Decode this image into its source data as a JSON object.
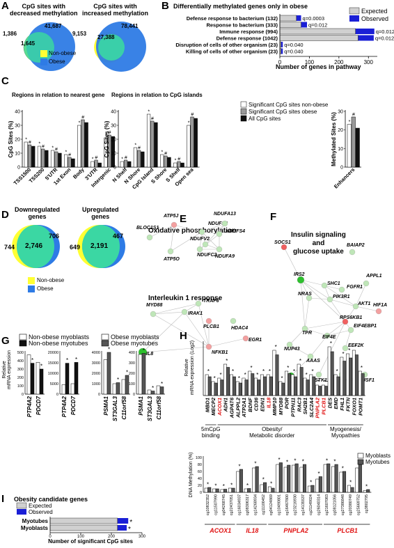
{
  "panels": {
    "A": {
      "letter": "A",
      "dec_title": "CpG sites with\ndecreased methylation",
      "inc_title": "CpG sites with\nincreased methylation",
      "dec_values": [
        "1,386",
        "1,645",
        "41,687"
      ],
      "inc_values": [
        "9,153",
        "27,388",
        "78,441"
      ],
      "legend": [
        "Non-obese",
        "Obese"
      ]
    },
    "B": {
      "letter": "B",
      "title": "Differentially methylated genes only in obese",
      "legend": [
        "Expected",
        "Observed"
      ],
      "xlabel": "Number of genes in pathway",
      "ticks": [
        "0",
        "100",
        "200",
        "300"
      ]
    },
    "C": {
      "letter": "C",
      "title1": "Regions in relation to nearest gene",
      "title2": "Regions in relation to CpG islands",
      "ylabel": "CpG Sites (%)",
      "ylabel2": "Methylated Sites (%)",
      "legend": [
        "Significant CpG sites non-obese",
        "Significant CpG sites obese",
        "All CpG sites"
      ]
    },
    "D": {
      "letter": "D",
      "down_title": "Downregulated\ngenes",
      "up_title": "Upregulated\ngenes",
      "down_values": [
        "744",
        "2,746",
        "706"
      ],
      "up_values": [
        "649",
        "2,191",
        "467"
      ],
      "legend": [
        "Non-obese",
        "Obese"
      ]
    },
    "E": {
      "letter": "E",
      "title1": "Oxidative phosphorylation",
      "title2": "Interleukin 1 response",
      "nodes1": [
        "ATP5J",
        "NDUFS8",
        "NDUFA13",
        "BLOC1S1",
        "NDUFS4",
        "NDUFV2",
        "NDUFC2",
        "NDUFA9",
        "ATP5O"
      ],
      "nodes2": [
        "MYD88",
        "TRAF6",
        "IRAK1",
        "PLCB1",
        "HDAC4",
        "IL8",
        "NFKB1",
        "EGR1"
      ]
    },
    "F": {
      "letter": "F",
      "title": "Insulin signaling\nand\nglucose uptake",
      "nodes": [
        "SOCS1",
        "BAIAP2",
        "IRS2",
        "SHC1",
        "FGFR1",
        "APPL1",
        "PIK3R1",
        "NRAS",
        "AKT1",
        "HIF1A",
        "RPS6KB1",
        "EIF4EBP1",
        "TPR",
        "EIF4E",
        "NUP43",
        "EEF2K",
        "AAAS",
        "IGF2",
        "STK11",
        "PPM1A",
        "USF1"
      ]
    },
    "G": {
      "letter": "G",
      "legend": [
        "Non-obese myoblasts",
        "Non-obese myotubes",
        "Obese myoblasts",
        "Obese myotubes"
      ],
      "ylabel": "Relative\nmRNA expression",
      "groups": [
        {
          "genes": [
            "PTP4A2",
            "PDCD7"
          ],
          "ticks": [
            "0",
            "100",
            "200",
            "300",
            "400",
            "500"
          ]
        },
        {
          "genes": [
            "PTP4A2",
            "PDCD7"
          ],
          "ticks": [
            "0",
            "5000",
            "10000",
            "15000",
            "20000"
          ]
        },
        {
          "genes": [
            "PSMA1",
            "ST3GAL3",
            "C11orf58"
          ],
          "ticks": [
            "0",
            "1000",
            "2000",
            "3000",
            "4000"
          ]
        },
        {
          "genes": [
            "PSMA1",
            "ST3GAL3",
            "C11orf58"
          ],
          "ticks": [
            "0",
            "100",
            "200",
            "300",
            "400"
          ]
        }
      ]
    },
    "H": {
      "letter": "H",
      "ylabel": "Relative\nmRNA expression (Log2)",
      "genes": [
        "MBD1",
        "MECP2",
        "ACOX1",
        "ADH1",
        "AGPAT6",
        "ALPPL2",
        "ATP2A1",
        "BDNF",
        "CD36",
        "EDN1",
        "IL18",
        "MMP10",
        "MYD88",
        "POR",
        "PTPN11",
        "RAC3",
        "SH2B1",
        "SLC2A4",
        "PNPLA2",
        "PLCB1",
        "DES",
        "EMD",
        "FHL1",
        "FKTN",
        "FOXO1",
        "POMT1"
      ],
      "red_genes": [
        "ACOX1",
        "IL18",
        "PNPLA2",
        "PLCB1"
      ],
      "categories": [
        "5mCpG\nbinding",
        "Obesity/\nMetabolic disorder",
        "Myogenesis/\nMyopathies"
      ],
      "meth_ylabel": "DNA Methylation (%)",
      "legend": [
        "Myoblasts",
        "Myotubes"
      ],
      "meth_genes": [
        "ACOX1",
        "IL18",
        "PNPLA2",
        "PLCB1"
      ],
      "probes": [
        "cg10832352",
        "cg11507990",
        "cg04268745",
        "cg22437051",
        "cg16034937",
        "cg08306317",
        "cg14268934",
        "cg11100452",
        "cg04124869",
        "cg10490801",
        "cg16467800",
        "cg23216930",
        "cg14135537",
        "cg21149024",
        "cg26040314",
        "cg21607083",
        "cg08121056",
        "cg27386848",
        "cg20380749",
        "cg25669752",
        "cg3802795"
      ]
    },
    "I": {
      "letter": "I",
      "title": "Obesity candidate genes",
      "legend": [
        "Expected",
        "Observed"
      ],
      "rows": [
        "Myotubes",
        "Myoblasts"
      ],
      "xlabel": "Number of significant CpG sites",
      "ticks": [
        "0",
        "100",
        "200",
        "300"
      ]
    }
  },
  "chart_data": [
    {
      "type": "bar",
      "title": "Differentially methylated genes only in obese",
      "categories": [
        "Defense response to bacterium (132)",
        "Response to bacterium (333)",
        "Immune response (994)",
        "Defense response (1042)",
        "Disruption of cells of other organism (23)",
        "Killing of cells of other organism (23)"
      ],
      "series": [
        {
          "name": "Expected",
          "values": [
            56,
            72,
            256,
            265,
            4,
            4
          ]
        },
        {
          "name": "Observed",
          "values": [
            72,
            92,
            320,
            318,
            10,
            10
          ]
        }
      ],
      "annotations": [
        "q=0.0003",
        "q=0.012",
        "q=0.012",
        "q=0.012",
        "q=0.040",
        "q=0.040"
      ],
      "xlabel": "Number of genes in pathway",
      "xlim": [
        0,
        330
      ]
    },
    {
      "type": "bar",
      "title": "Regions in relation to nearest gene",
      "categories": [
        "TSS1500",
        "TSS200",
        "5'UTR",
        "1st Exon",
        "Body",
        "3'UTR",
        "Intergenic"
      ],
      "series": [
        {
          "name": "Significant CpG sites non-obese",
          "values": [
            18,
            15,
            12,
            9,
            30,
            4,
            21
          ]
        },
        {
          "name": "Significant CpG sites obese",
          "values": [
            16,
            13,
            11,
            7,
            34,
            5,
            23
          ]
        },
        {
          "name": "All CpG sites",
          "values": [
            15,
            12,
            10,
            6,
            32,
            3,
            22
          ]
        }
      ],
      "ylabel": "CpG Sites (%)",
      "ylim": [
        0,
        40
      ]
    },
    {
      "type": "bar",
      "title": "Regions in relation to CpG islands",
      "categories": [
        "N Shelf",
        "N Shore",
        "CpG Island",
        "S Shore",
        "S Shelf",
        "Open sea"
      ],
      "series": [
        {
          "name": "Significant CpG sites non-obese",
          "values": [
            4,
            14,
            38,
            9,
            3,
            30
          ]
        },
        {
          "name": "Significant CpG sites obese",
          "values": [
            5,
            12,
            33,
            8,
            4,
            36
          ]
        },
        {
          "name": "All CpG sites",
          "values": [
            4,
            11,
            32,
            7,
            3,
            35
          ]
        }
      ],
      "ylabel": "CpG Sites (%)",
      "ylim": [
        0,
        40
      ]
    },
    {
      "type": "bar",
      "categories": [
        "Enhancers"
      ],
      "series": [
        {
          "name": "Significant CpG sites non-obese",
          "values": [
            23
          ]
        },
        {
          "name": "Significant CpG sites obese",
          "values": [
            27
          ]
        },
        {
          "name": "All CpG sites",
          "values": [
            21
          ]
        }
      ],
      "ylabel": "Methylated Sites (%)",
      "ylim": [
        0,
        30
      ]
    },
    {
      "type": "bar",
      "title": "Obesity candidate genes",
      "categories": [
        "Myotubes",
        "Myoblasts"
      ],
      "series": [
        {
          "name": "Expected",
          "values": [
            220,
            220
          ]
        },
        {
          "name": "Observed",
          "values": [
            255,
            250
          ]
        }
      ],
      "xlabel": "Number of significant CpG sites",
      "xlim": [
        0,
        300
      ]
    }
  ]
}
